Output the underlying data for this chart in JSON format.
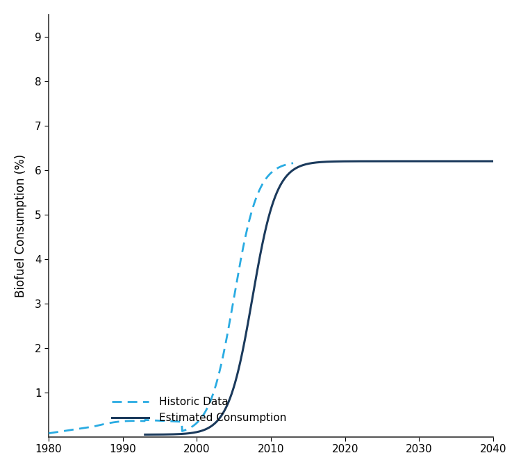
{
  "ylabel": "Biofuel Consumption (%)",
  "xlim": [
    1980,
    2040
  ],
  "ylim": [
    0,
    9.5
  ],
  "yticks": [
    1,
    2,
    3,
    4,
    5,
    6,
    7,
    8,
    9
  ],
  "xticks": [
    1980,
    1990,
    2000,
    2010,
    2020,
    2030,
    2040
  ],
  "historic_color": "#29ABE2",
  "estimated_color": "#1B3A5C",
  "historic_label": "Historic Data",
  "estimated_label": "Estimated Consumption",
  "background_color": "#FFFFFF"
}
